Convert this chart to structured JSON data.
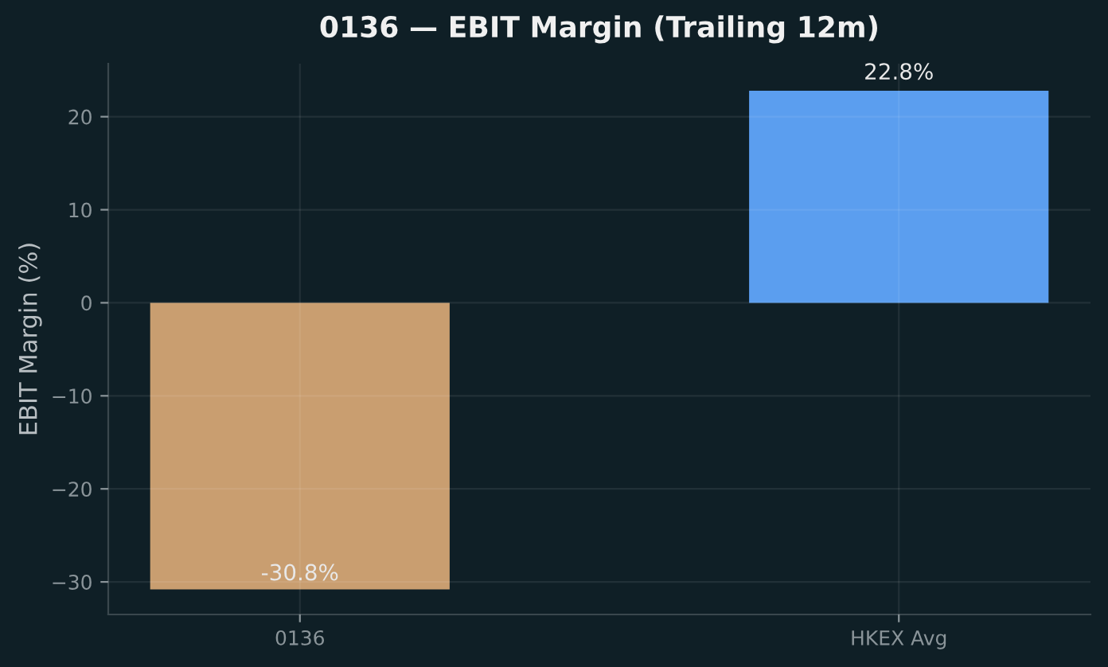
{
  "chart_data": {
    "type": "bar",
    "title": "0136 — EBIT Margin (Trailing 12m)",
    "ylabel": "EBIT Margin (%)",
    "categories": [
      "0136",
      "HKEX Avg"
    ],
    "values": [
      -30.8,
      22.8
    ],
    "colors": [
      "#d4a574",
      "#60a5fa"
    ],
    "value_labels": [
      "-30.8%",
      "22.8%"
    ],
    "ylim": [
      -33.5,
      25.7
    ],
    "yticks": [
      -30,
      -20,
      -10,
      0,
      10,
      20
    ],
    "grid": true
  }
}
